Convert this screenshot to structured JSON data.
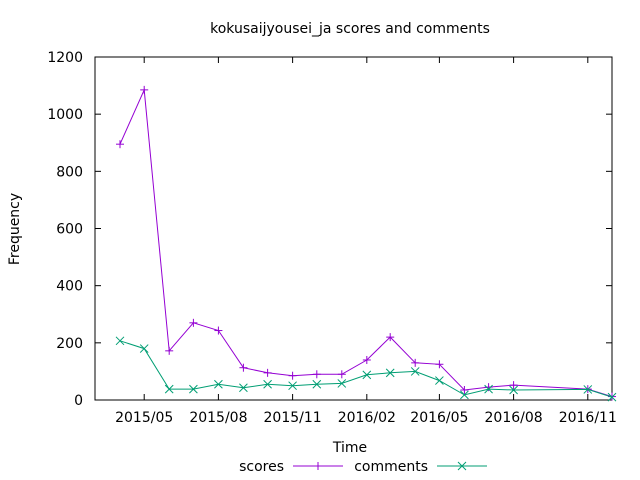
{
  "chart_data": {
    "type": "line",
    "title": "kokusaijyousei_ja scores and comments",
    "xlabel": "Time",
    "ylabel": "Frequency",
    "x_ticks": [
      "2015/05",
      "2015/08",
      "2015/11",
      "2016/02",
      "2016/05",
      "2016/08",
      "2016/11"
    ],
    "y_ticks": [
      0,
      200,
      400,
      600,
      800,
      1000,
      1200
    ],
    "ylim": [
      0,
      1200
    ],
    "xlim": [
      "2015-03-01",
      "2016-12-01"
    ],
    "grid": false,
    "legend_position": "bottom-center",
    "x": [
      "2015-04-01",
      "2015-05-01",
      "2015-06-01",
      "2015-07-01",
      "2015-08-01",
      "2015-09-01",
      "2015-10-01",
      "2015-11-01",
      "2015-12-01",
      "2016-01-01",
      "2016-02-01",
      "2016-03-01",
      "2016-04-01",
      "2016-05-01",
      "2016-06-01",
      "2016-07-01",
      "2016-08-01",
      "2016-11-01",
      "2016-12-01"
    ],
    "series": [
      {
        "name": "scores",
        "color": "#9400d3",
        "marker": "plus",
        "values": [
          895,
          1085,
          172,
          270,
          243,
          113,
          95,
          85,
          90,
          90,
          140,
          220,
          130,
          125,
          35,
          45,
          52,
          38,
          12
        ]
      },
      {
        "name": "comments",
        "color": "#009e73",
        "marker": "cross",
        "values": [
          207,
          180,
          38,
          38,
          55,
          43,
          55,
          50,
          55,
          58,
          88,
          95,
          100,
          68,
          18,
          38,
          35,
          37,
          10
        ]
      }
    ]
  }
}
